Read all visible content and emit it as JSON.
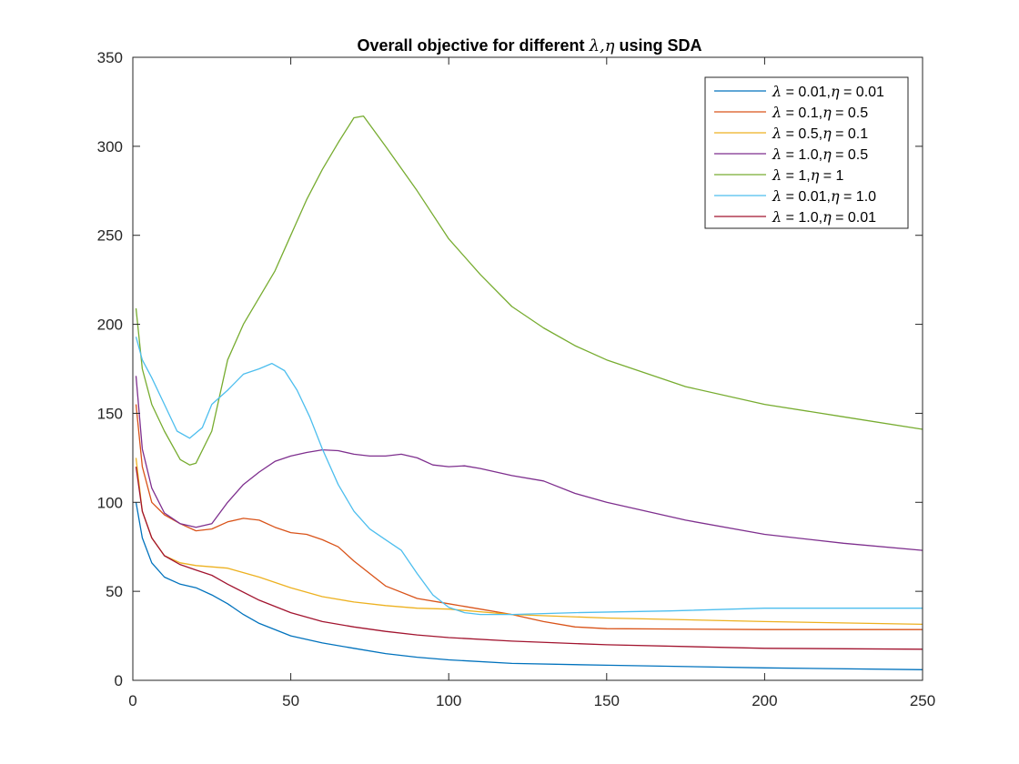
{
  "chart_data": {
    "type": "line",
    "title": {
      "prefix": "Overall objective for different ",
      "math": "λ,η",
      "suffix": " using SDA"
    },
    "xlabel": "",
    "ylabel": "",
    "xlim": [
      0,
      250
    ],
    "ylim": [
      0,
      350
    ],
    "xticks": [
      0,
      50,
      100,
      150,
      200,
      250
    ],
    "yticks": [
      0,
      50,
      100,
      150,
      200,
      250,
      300,
      350
    ],
    "grid": false,
    "legend_position": "top-right",
    "series": [
      {
        "name": "λ = 0.01,η = 0.01",
        "legend": {
          "l": "0.01",
          "e": "0.01"
        },
        "color": "#0072BD",
        "points": [
          [
            1,
            100
          ],
          [
            3,
            80
          ],
          [
            6,
            66
          ],
          [
            10,
            58
          ],
          [
            15,
            54
          ],
          [
            20,
            52
          ],
          [
            25,
            48
          ],
          [
            30,
            43
          ],
          [
            35,
            37
          ],
          [
            40,
            32
          ],
          [
            50,
            25
          ],
          [
            60,
            21
          ],
          [
            70,
            18
          ],
          [
            80,
            15
          ],
          [
            90,
            13
          ],
          [
            100,
            11.5
          ],
          [
            120,
            9.5
          ],
          [
            150,
            8.5
          ],
          [
            200,
            7
          ],
          [
            250,
            6
          ]
        ]
      },
      {
        "name": "λ = 0.1,η = 0.5",
        "legend": {
          "l": "0.1",
          "e": "0.5"
        },
        "color": "#D95319",
        "points": [
          [
            1,
            155
          ],
          [
            3,
            120
          ],
          [
            6,
            100
          ],
          [
            10,
            93
          ],
          [
            15,
            88
          ],
          [
            20,
            84
          ],
          [
            25,
            85
          ],
          [
            30,
            89
          ],
          [
            35,
            91
          ],
          [
            40,
            90
          ],
          [
            45,
            86
          ],
          [
            50,
            83
          ],
          [
            55,
            82
          ],
          [
            60,
            79
          ],
          [
            65,
            75
          ],
          [
            70,
            67
          ],
          [
            80,
            53
          ],
          [
            90,
            46
          ],
          [
            100,
            43
          ],
          [
            110,
            40
          ],
          [
            120,
            37
          ],
          [
            130,
            33
          ],
          [
            140,
            30
          ],
          [
            150,
            29
          ],
          [
            200,
            28.5
          ],
          [
            250,
            28.5
          ]
        ]
      },
      {
        "name": "λ = 0.5,η = 0.1",
        "legend": {
          "l": "0.5",
          "e": "0.1"
        },
        "color": "#EDB120",
        "points": [
          [
            1,
            125
          ],
          [
            3,
            95
          ],
          [
            6,
            80
          ],
          [
            10,
            70
          ],
          [
            15,
            66
          ],
          [
            20,
            64.5
          ],
          [
            30,
            63
          ],
          [
            40,
            58
          ],
          [
            50,
            52
          ],
          [
            60,
            47
          ],
          [
            70,
            44
          ],
          [
            80,
            42
          ],
          [
            90,
            40.5
          ],
          [
            100,
            40
          ],
          [
            120,
            37
          ],
          [
            150,
            35
          ],
          [
            200,
            33
          ],
          [
            250,
            31.5
          ]
        ]
      },
      {
        "name": "λ = 1.0,η = 0.5",
        "legend": {
          "l": "1.0",
          "e": "0.5"
        },
        "color": "#7E2F8E",
        "points": [
          [
            1,
            171
          ],
          [
            3,
            130
          ],
          [
            6,
            108
          ],
          [
            10,
            94
          ],
          [
            15,
            88
          ],
          [
            20,
            86
          ],
          [
            25,
            88
          ],
          [
            30,
            100
          ],
          [
            35,
            110
          ],
          [
            40,
            117
          ],
          [
            45,
            123
          ],
          [
            50,
            126
          ],
          [
            55,
            128
          ],
          [
            60,
            129.5
          ],
          [
            65,
            129
          ],
          [
            70,
            127
          ],
          [
            75,
            126
          ],
          [
            80,
            126
          ],
          [
            85,
            127
          ],
          [
            90,
            125
          ],
          [
            95,
            121
          ],
          [
            100,
            120
          ],
          [
            105,
            120.5
          ],
          [
            110,
            119
          ],
          [
            120,
            115
          ],
          [
            130,
            112
          ],
          [
            140,
            105
          ],
          [
            150,
            100
          ],
          [
            175,
            90
          ],
          [
            200,
            82
          ],
          [
            225,
            77
          ],
          [
            250,
            73
          ]
        ]
      },
      {
        "name": "λ = 1,η = 1",
        "legend": {
          "l": "1",
          "e": "1"
        },
        "color": "#77AC30",
        "points": [
          [
            1,
            209
          ],
          [
            3,
            175
          ],
          [
            6,
            155
          ],
          [
            10,
            140
          ],
          [
            15,
            124
          ],
          [
            18,
            121
          ],
          [
            20,
            122
          ],
          [
            25,
            140
          ],
          [
            30,
            180
          ],
          [
            35,
            200
          ],
          [
            40,
            215
          ],
          [
            45,
            230
          ],
          [
            50,
            250
          ],
          [
            55,
            270
          ],
          [
            60,
            287
          ],
          [
            65,
            302
          ],
          [
            70,
            316
          ],
          [
            73,
            317
          ],
          [
            80,
            300
          ],
          [
            90,
            275
          ],
          [
            100,
            248
          ],
          [
            110,
            228
          ],
          [
            120,
            210
          ],
          [
            130,
            198
          ],
          [
            140,
            188
          ],
          [
            150,
            180
          ],
          [
            175,
            165
          ],
          [
            200,
            155
          ],
          [
            225,
            148
          ],
          [
            250,
            141
          ]
        ]
      },
      {
        "name": "λ = 0.01,η = 1.0",
        "legend": {
          "l": "0.01",
          "e": "1.0"
        },
        "color": "#4DBEEE",
        "points": [
          [
            1,
            193
          ],
          [
            3,
            180
          ],
          [
            6,
            170
          ],
          [
            10,
            155
          ],
          [
            14,
            140
          ],
          [
            18,
            136
          ],
          [
            22,
            142
          ],
          [
            25,
            155
          ],
          [
            30,
            163
          ],
          [
            35,
            172
          ],
          [
            40,
            175
          ],
          [
            44,
            178
          ],
          [
            48,
            174
          ],
          [
            52,
            163
          ],
          [
            56,
            148
          ],
          [
            60,
            130
          ],
          [
            65,
            110
          ],
          [
            70,
            95
          ],
          [
            75,
            85
          ],
          [
            80,
            79
          ],
          [
            85,
            73
          ],
          [
            90,
            60
          ],
          [
            95,
            48
          ],
          [
            100,
            41
          ],
          [
            105,
            38
          ],
          [
            110,
            37
          ],
          [
            120,
            37
          ],
          [
            140,
            38
          ],
          [
            170,
            39
          ],
          [
            200,
            40.5
          ],
          [
            250,
            40.5
          ]
        ]
      },
      {
        "name": "λ = 1.0,η = 0.01",
        "legend": {
          "l": "1.0",
          "e": "0.01"
        },
        "color": "#A2142F",
        "points": [
          [
            1,
            120
          ],
          [
            3,
            95
          ],
          [
            6,
            80
          ],
          [
            10,
            70
          ],
          [
            15,
            65
          ],
          [
            20,
            62
          ],
          [
            25,
            59
          ],
          [
            30,
            54
          ],
          [
            40,
            45
          ],
          [
            50,
            38
          ],
          [
            60,
            33
          ],
          [
            70,
            30
          ],
          [
            80,
            27.5
          ],
          [
            90,
            25.5
          ],
          [
            100,
            24
          ],
          [
            120,
            22
          ],
          [
            150,
            20
          ],
          [
            200,
            18
          ],
          [
            250,
            17.5
          ]
        ]
      }
    ]
  }
}
